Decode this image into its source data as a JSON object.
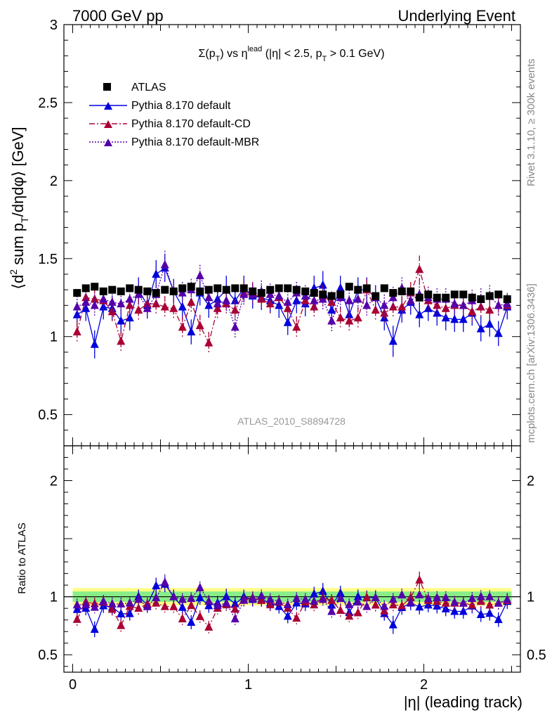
{
  "header": {
    "left": "7000 GeV pp",
    "right": "Underlying Event"
  },
  "side": {
    "rivet": "Rivet 3.1.10, ≥ 300k events",
    "mcplots": "mcplots.cern.ch [arXiv:1306.3436]"
  },
  "chart_data": {
    "type": "scatter",
    "title_parts": {
      "a": "Σ(p",
      "b": "T",
      "c": ") vs η",
      "d": "lead",
      "e": " (|η| < 2.5, p",
      "f": "T",
      "g": " > 0.1 GeV)"
    },
    "ylabel_parts": {
      "a": "⟨d",
      "b": "2",
      "c": " sum p",
      "d": "T",
      "e": "/dηdφ⟩ [GeV]"
    },
    "xlabel": "|η| (leading track)",
    "ratio_ylabel": "Ratio to ATLAS",
    "analysis_id": "ATLAS_2010_S8894728",
    "xlim": [
      -0.05,
      2.55
    ],
    "ylim": [
      0.3,
      3.0
    ],
    "ratio_ylim": [
      0.35,
      2.3
    ],
    "x_ticks": [
      {
        "v": 0,
        "t": "0"
      },
      {
        "v": 1,
        "t": "1"
      },
      {
        "v": 2,
        "t": "2"
      }
    ],
    "y_ticks": [
      {
        "v": 0.5,
        "t": "0.5"
      },
      {
        "v": 1,
        "t": "1"
      },
      {
        "v": 1.5,
        "t": "1.5"
      },
      {
        "v": 2,
        "t": "2"
      },
      {
        "v": 2.5,
        "t": "2.5"
      },
      {
        "v": 3,
        "t": "3"
      }
    ],
    "ratio_y_ticks": [
      {
        "v": 0.5,
        "t": "0.5"
      },
      {
        "v": 1,
        "t": "1"
      },
      {
        "v": 2,
        "t": "2"
      }
    ],
    "x": [
      0.025,
      0.075,
      0.125,
      0.175,
      0.225,
      0.275,
      0.325,
      0.375,
      0.425,
      0.475,
      0.525,
      0.575,
      0.625,
      0.675,
      0.725,
      0.775,
      0.825,
      0.875,
      0.925,
      0.975,
      1.025,
      1.075,
      1.125,
      1.175,
      1.225,
      1.275,
      1.325,
      1.375,
      1.425,
      1.475,
      1.525,
      1.575,
      1.625,
      1.675,
      1.725,
      1.775,
      1.825,
      1.875,
      1.925,
      1.975,
      2.025,
      2.075,
      2.125,
      2.175,
      2.225,
      2.275,
      2.325,
      2.375,
      2.425,
      2.475
    ],
    "series": [
      {
        "name": "ATLAS",
        "color": "#000000",
        "values": [
          1.28,
          1.31,
          1.32,
          1.29,
          1.3,
          1.29,
          1.31,
          1.3,
          1.29,
          1.28,
          1.3,
          1.29,
          1.31,
          1.32,
          1.29,
          1.3,
          1.31,
          1.3,
          1.31,
          1.31,
          1.29,
          1.28,
          1.3,
          1.31,
          1.31,
          1.3,
          1.29,
          1.28,
          1.27,
          1.26,
          1.27,
          1.32,
          1.3,
          1.31,
          1.26,
          1.31,
          1.28,
          1.29,
          1.29,
          1.25,
          1.27,
          1.25,
          1.25,
          1.27,
          1.27,
          1.25,
          1.24,
          1.26,
          1.27,
          1.24
        ]
      },
      {
        "name": "Pythia 8.170 default",
        "color": "#0000dd",
        "values": [
          1.14,
          1.18,
          0.95,
          1.19,
          1.18,
          1.1,
          1.12,
          1.3,
          1.2,
          1.4,
          1.44,
          1.29,
          1.19,
          1.03,
          1.28,
          1.2,
          1.24,
          1.3,
          1.23,
          1.31,
          1.26,
          1.25,
          1.23,
          1.2,
          1.09,
          1.23,
          1.21,
          1.31,
          1.33,
          1.17,
          1.31,
          1.14,
          1.3,
          1.3,
          1.25,
          1.12,
          0.97,
          1.17,
          1.22,
          1.14,
          1.18,
          1.15,
          1.12,
          1.11,
          1.11,
          1.15,
          1.05,
          1.08,
          1.02,
          1.19
        ],
        "errors": [
          0.08,
          0.08,
          0.09,
          0.08,
          0.08,
          0.08,
          0.08,
          0.08,
          0.08,
          0.09,
          0.09,
          0.08,
          0.08,
          0.08,
          0.08,
          0.08,
          0.08,
          0.09,
          0.08,
          0.08,
          0.08,
          0.08,
          0.08,
          0.08,
          0.08,
          0.08,
          0.08,
          0.08,
          0.09,
          0.08,
          0.08,
          0.08,
          0.08,
          0.08,
          0.08,
          0.08,
          0.1,
          0.08,
          0.08,
          0.08,
          0.08,
          0.08,
          0.08,
          0.08,
          0.08,
          0.08,
          0.08,
          0.08,
          0.08,
          0.08
        ]
      },
      {
        "name": "Pythia 8.170 default-CD",
        "color": "#aa0033",
        "values": [
          1.03,
          1.25,
          1.24,
          1.23,
          1.16,
          0.97,
          1.2,
          1.17,
          1.21,
          1.21,
          1.19,
          1.18,
          1.06,
          1.22,
          1.07,
          0.96,
          1.18,
          1.21,
          1.17,
          1.28,
          1.28,
          1.24,
          1.21,
          1.25,
          1.18,
          1.06,
          1.23,
          1.19,
          1.26,
          1.22,
          1.12,
          1.1,
          1.12,
          1.3,
          1.17,
          1.15,
          1.19,
          1.19,
          1.28,
          1.43,
          1.23,
          1.2,
          1.18,
          1.2,
          1.2,
          1.16,
          1.19,
          1.17,
          1.2,
          1.2
        ],
        "errors": [
          0.07,
          0.07,
          0.07,
          0.07,
          0.07,
          0.07,
          0.07,
          0.07,
          0.07,
          0.07,
          0.07,
          0.07,
          0.07,
          0.07,
          0.07,
          0.07,
          0.07,
          0.07,
          0.07,
          0.07,
          0.07,
          0.07,
          0.07,
          0.07,
          0.07,
          0.07,
          0.07,
          0.07,
          0.07,
          0.07,
          0.07,
          0.07,
          0.07,
          0.07,
          0.07,
          0.07,
          0.07,
          0.07,
          0.07,
          0.09,
          0.07,
          0.07,
          0.07,
          0.07,
          0.07,
          0.07,
          0.07,
          0.07,
          0.07,
          0.07
        ]
      },
      {
        "name": "Pythia 8.170 default-MBR",
        "color": "#5500aa",
        "values": [
          1.19,
          1.22,
          1.2,
          1.24,
          1.22,
          1.21,
          1.24,
          1.27,
          1.18,
          1.27,
          1.46,
          1.29,
          1.28,
          1.3,
          1.39,
          1.25,
          1.21,
          1.23,
          1.06,
          1.27,
          1.27,
          1.29,
          1.27,
          1.26,
          1.22,
          1.28,
          1.26,
          1.23,
          1.24,
          1.1,
          1.25,
          1.23,
          1.24,
          1.2,
          1.25,
          1.2,
          1.25,
          1.31,
          1.23,
          1.27,
          1.25,
          1.24,
          1.24,
          1.21,
          1.2,
          1.23,
          1.24,
          1.26,
          1.2,
          1.21
        ],
        "errors": [
          0.07,
          0.07,
          0.07,
          0.07,
          0.07,
          0.07,
          0.07,
          0.07,
          0.07,
          0.07,
          0.09,
          0.07,
          0.07,
          0.07,
          0.07,
          0.07,
          0.07,
          0.07,
          0.07,
          0.07,
          0.07,
          0.07,
          0.07,
          0.07,
          0.07,
          0.07,
          0.07,
          0.07,
          0.07,
          0.07,
          0.07,
          0.07,
          0.07,
          0.07,
          0.07,
          0.07,
          0.07,
          0.07,
          0.07,
          0.07,
          0.07,
          0.07,
          0.07,
          0.07,
          0.07,
          0.07,
          0.07,
          0.07,
          0.07,
          0.07
        ]
      }
    ],
    "legend_position": "top-left"
  }
}
